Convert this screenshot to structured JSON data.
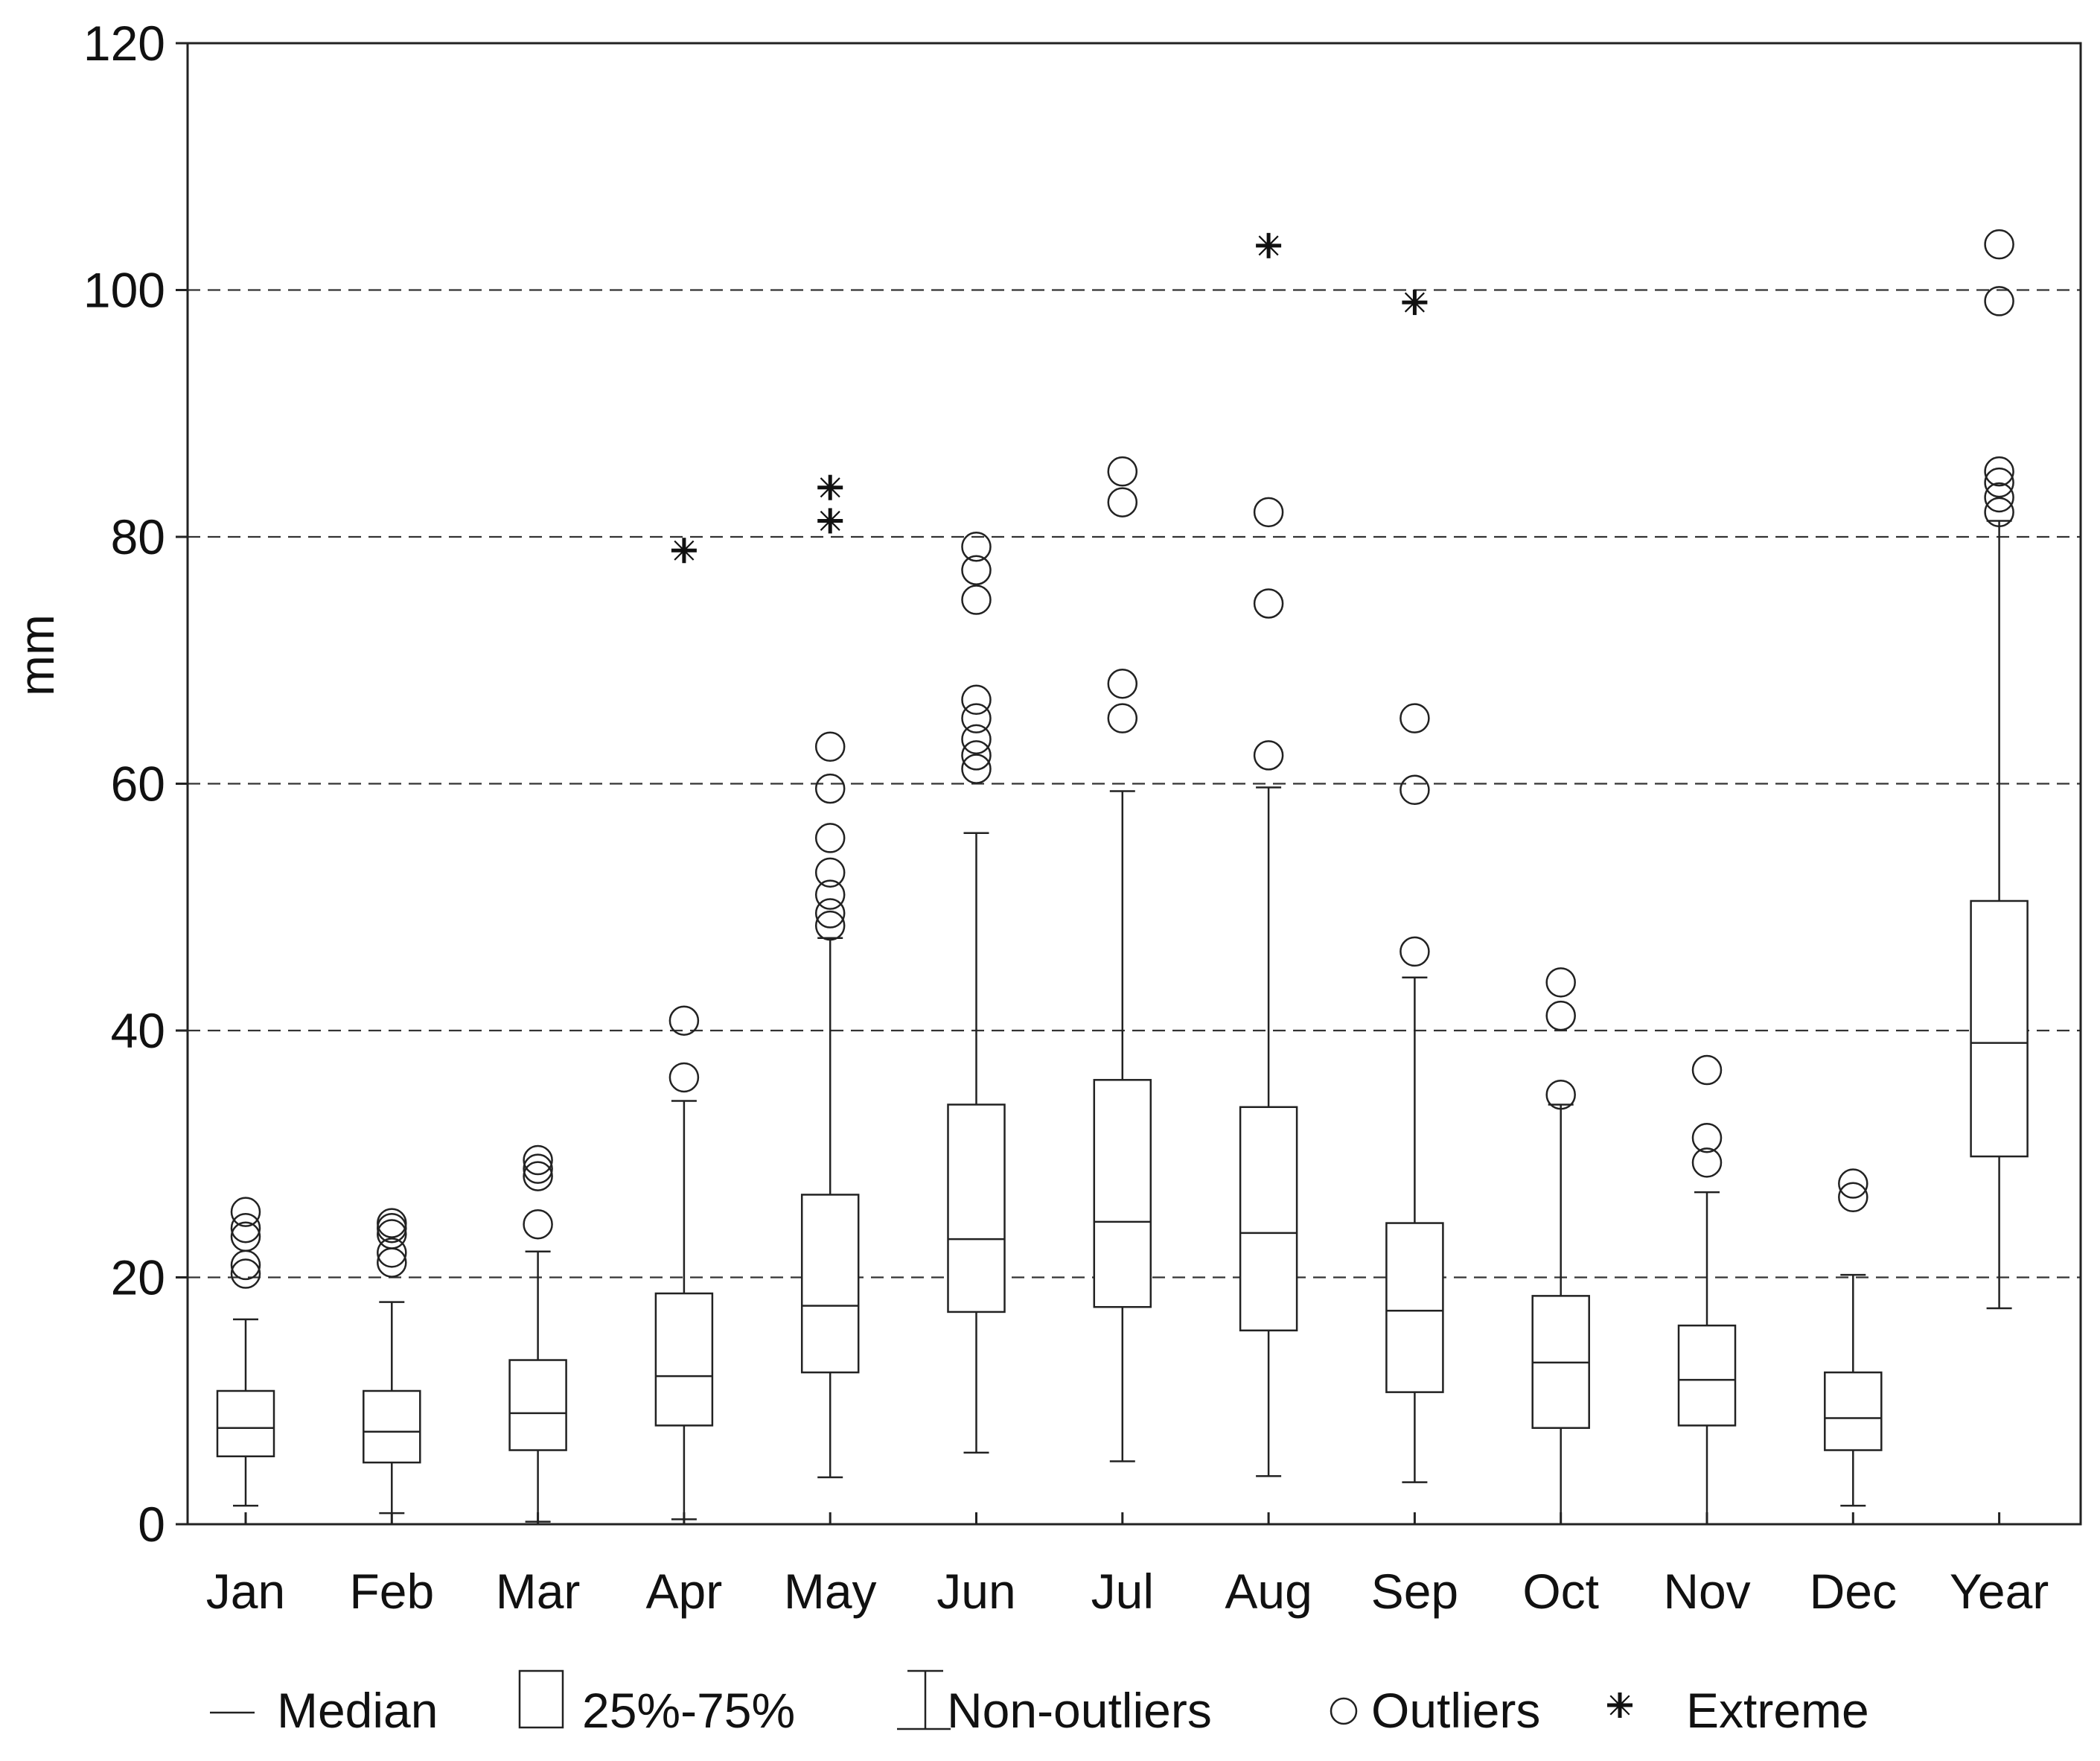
{
  "chart_data": {
    "type": "box",
    "title": "",
    "xlabel": "",
    "ylabel": "mm",
    "ylim": [
      0,
      120
    ],
    "yticks": [
      0,
      20,
      40,
      60,
      80,
      100,
      120
    ],
    "grid": "horizontal dashed",
    "categories": [
      "Jan",
      "Feb",
      "Mar",
      "Apr",
      "May",
      "Jun",
      "Jul",
      "Aug",
      "Sep",
      "Oct",
      "Nov",
      "Dec",
      "Year"
    ],
    "boxes": [
      {
        "category": "Jan",
        "whisker_low": 1.5,
        "q1": 5.5,
        "median": 7.8,
        "q3": 10.8,
        "whisker_high": 16.6,
        "outliers": [
          20.3,
          21.0,
          23.3,
          24.0,
          25.3
        ],
        "extremes": []
      },
      {
        "category": "Feb",
        "whisker_low": 0.9,
        "q1": 5.0,
        "median": 7.5,
        "q3": 10.8,
        "whisker_high": 18.0,
        "outliers": [
          21.2,
          22.0,
          23.5,
          24.0,
          24.4
        ],
        "extremes": []
      },
      {
        "category": "Mar",
        "whisker_low": 0.2,
        "q1": 6.0,
        "median": 9.0,
        "q3": 13.3,
        "whisker_high": 22.1,
        "outliers": [
          24.3,
          28.2,
          28.8,
          29.5
        ],
        "extremes": []
      },
      {
        "category": "Apr",
        "whisker_low": 0.4,
        "q1": 8.0,
        "median": 12.0,
        "q3": 18.7,
        "whisker_high": 34.3,
        "outliers": [
          36.2,
          40.8
        ],
        "extremes": [
          78.9
        ]
      },
      {
        "category": "May",
        "whisker_low": 3.8,
        "q1": 12.3,
        "median": 17.7,
        "q3": 26.7,
        "whisker_high": 47.5,
        "outliers": [
          48.5,
          49.5,
          51.0,
          52.8,
          55.6,
          59.6,
          63.0
        ],
        "extremes": [
          81.3,
          84.0
        ]
      },
      {
        "category": "Jun",
        "whisker_low": 5.8,
        "q1": 17.2,
        "median": 23.1,
        "q3": 34.0,
        "whisker_high": 56.0,
        "outliers": [
          61.2,
          62.3,
          63.6,
          65.3,
          66.8,
          74.9,
          77.3,
          79.2
        ],
        "extremes": []
      },
      {
        "category": "Jul",
        "whisker_low": 5.1,
        "q1": 17.6,
        "median": 24.5,
        "q3": 36.0,
        "whisker_high": 59.4,
        "outliers": [
          65.3,
          68.1,
          82.8,
          85.3
        ],
        "extremes": []
      },
      {
        "category": "Aug",
        "whisker_low": 3.9,
        "q1": 15.7,
        "median": 23.6,
        "q3": 33.8,
        "whisker_high": 59.7,
        "outliers": [
          62.3,
          74.6,
          82.0
        ],
        "extremes": [
          103.6
        ]
      },
      {
        "category": "Sep",
        "whisker_low": 3.4,
        "q1": 10.7,
        "median": 17.3,
        "q3": 24.4,
        "whisker_high": 44.3,
        "outliers": [
          46.4,
          59.5,
          65.3
        ],
        "extremes": [
          99.0
        ]
      },
      {
        "category": "Oct",
        "whisker_low": 0.0,
        "q1": 7.8,
        "median": 13.1,
        "q3": 18.5,
        "whisker_high": 34.0,
        "outliers": [
          34.8,
          41.2,
          43.9
        ],
        "extremes": []
      },
      {
        "category": "Nov",
        "whisker_low": 0.0,
        "q1": 8.0,
        "median": 11.7,
        "q3": 16.1,
        "whisker_high": 26.9,
        "outliers": [
          29.3,
          31.3,
          36.8
        ],
        "extremes": []
      },
      {
        "category": "Dec",
        "whisker_low": 1.5,
        "q1": 6.0,
        "median": 8.6,
        "q3": 12.3,
        "whisker_high": 20.2,
        "outliers": [
          26.5,
          27.6
        ],
        "extremes": []
      },
      {
        "category": "Year",
        "whisker_low": 17.5,
        "q1": 29.8,
        "median": 39.0,
        "q3": 50.5,
        "whisker_high": 81.3,
        "outliers": [
          82.0,
          83.2,
          84.4,
          85.3,
          99.1,
          103.7
        ],
        "extremes": []
      }
    ],
    "legend": {
      "placement": "bottom",
      "items": [
        {
          "symbol": "median",
          "label": "Median"
        },
        {
          "symbol": "box",
          "label": "25%-75%"
        },
        {
          "symbol": "whisker",
          "label": "Non-outliers"
        },
        {
          "symbol": "circle",
          "label": "Outliers"
        },
        {
          "symbol": "star",
          "label": "Extreme"
        }
      ]
    }
  }
}
